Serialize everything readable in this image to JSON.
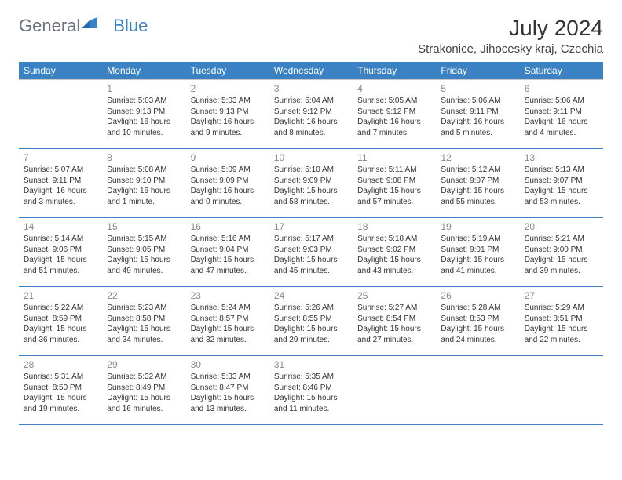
{
  "logo": {
    "text1": "General",
    "text2": "Blue"
  },
  "title": "July 2024",
  "location": "Strakonice, Jihocesky kraj, Czechia",
  "weekdays": [
    "Sunday",
    "Monday",
    "Tuesday",
    "Wednesday",
    "Thursday",
    "Friday",
    "Saturday"
  ],
  "colors": {
    "header_bg": "#3b82c4",
    "header_text": "#ffffff",
    "daynum": "#888888",
    "body_text": "#333333",
    "border": "#3b82c4",
    "row_top": "#c8c8c8"
  },
  "weeks": [
    [
      null,
      {
        "n": "1",
        "sr": "Sunrise: 5:03 AM",
        "ss": "Sunset: 9:13 PM",
        "d1": "Daylight: 16 hours",
        "d2": "and 10 minutes."
      },
      {
        "n": "2",
        "sr": "Sunrise: 5:03 AM",
        "ss": "Sunset: 9:13 PM",
        "d1": "Daylight: 16 hours",
        "d2": "and 9 minutes."
      },
      {
        "n": "3",
        "sr": "Sunrise: 5:04 AM",
        "ss": "Sunset: 9:12 PM",
        "d1": "Daylight: 16 hours",
        "d2": "and 8 minutes."
      },
      {
        "n": "4",
        "sr": "Sunrise: 5:05 AM",
        "ss": "Sunset: 9:12 PM",
        "d1": "Daylight: 16 hours",
        "d2": "and 7 minutes."
      },
      {
        "n": "5",
        "sr": "Sunrise: 5:06 AM",
        "ss": "Sunset: 9:11 PM",
        "d1": "Daylight: 16 hours",
        "d2": "and 5 minutes."
      },
      {
        "n": "6",
        "sr": "Sunrise: 5:06 AM",
        "ss": "Sunset: 9:11 PM",
        "d1": "Daylight: 16 hours",
        "d2": "and 4 minutes."
      }
    ],
    [
      {
        "n": "7",
        "sr": "Sunrise: 5:07 AM",
        "ss": "Sunset: 9:11 PM",
        "d1": "Daylight: 16 hours",
        "d2": "and 3 minutes."
      },
      {
        "n": "8",
        "sr": "Sunrise: 5:08 AM",
        "ss": "Sunset: 9:10 PM",
        "d1": "Daylight: 16 hours",
        "d2": "and 1 minute."
      },
      {
        "n": "9",
        "sr": "Sunrise: 5:09 AM",
        "ss": "Sunset: 9:09 PM",
        "d1": "Daylight: 16 hours",
        "d2": "and 0 minutes."
      },
      {
        "n": "10",
        "sr": "Sunrise: 5:10 AM",
        "ss": "Sunset: 9:09 PM",
        "d1": "Daylight: 15 hours",
        "d2": "and 58 minutes."
      },
      {
        "n": "11",
        "sr": "Sunrise: 5:11 AM",
        "ss": "Sunset: 9:08 PM",
        "d1": "Daylight: 15 hours",
        "d2": "and 57 minutes."
      },
      {
        "n": "12",
        "sr": "Sunrise: 5:12 AM",
        "ss": "Sunset: 9:07 PM",
        "d1": "Daylight: 15 hours",
        "d2": "and 55 minutes."
      },
      {
        "n": "13",
        "sr": "Sunrise: 5:13 AM",
        "ss": "Sunset: 9:07 PM",
        "d1": "Daylight: 15 hours",
        "d2": "and 53 minutes."
      }
    ],
    [
      {
        "n": "14",
        "sr": "Sunrise: 5:14 AM",
        "ss": "Sunset: 9:06 PM",
        "d1": "Daylight: 15 hours",
        "d2": "and 51 minutes."
      },
      {
        "n": "15",
        "sr": "Sunrise: 5:15 AM",
        "ss": "Sunset: 9:05 PM",
        "d1": "Daylight: 15 hours",
        "d2": "and 49 minutes."
      },
      {
        "n": "16",
        "sr": "Sunrise: 5:16 AM",
        "ss": "Sunset: 9:04 PM",
        "d1": "Daylight: 15 hours",
        "d2": "and 47 minutes."
      },
      {
        "n": "17",
        "sr": "Sunrise: 5:17 AM",
        "ss": "Sunset: 9:03 PM",
        "d1": "Daylight: 15 hours",
        "d2": "and 45 minutes."
      },
      {
        "n": "18",
        "sr": "Sunrise: 5:18 AM",
        "ss": "Sunset: 9:02 PM",
        "d1": "Daylight: 15 hours",
        "d2": "and 43 minutes."
      },
      {
        "n": "19",
        "sr": "Sunrise: 5:19 AM",
        "ss": "Sunset: 9:01 PM",
        "d1": "Daylight: 15 hours",
        "d2": "and 41 minutes."
      },
      {
        "n": "20",
        "sr": "Sunrise: 5:21 AM",
        "ss": "Sunset: 9:00 PM",
        "d1": "Daylight: 15 hours",
        "d2": "and 39 minutes."
      }
    ],
    [
      {
        "n": "21",
        "sr": "Sunrise: 5:22 AM",
        "ss": "Sunset: 8:59 PM",
        "d1": "Daylight: 15 hours",
        "d2": "and 36 minutes."
      },
      {
        "n": "22",
        "sr": "Sunrise: 5:23 AM",
        "ss": "Sunset: 8:58 PM",
        "d1": "Daylight: 15 hours",
        "d2": "and 34 minutes."
      },
      {
        "n": "23",
        "sr": "Sunrise: 5:24 AM",
        "ss": "Sunset: 8:57 PM",
        "d1": "Daylight: 15 hours",
        "d2": "and 32 minutes."
      },
      {
        "n": "24",
        "sr": "Sunrise: 5:26 AM",
        "ss": "Sunset: 8:55 PM",
        "d1": "Daylight: 15 hours",
        "d2": "and 29 minutes."
      },
      {
        "n": "25",
        "sr": "Sunrise: 5:27 AM",
        "ss": "Sunset: 8:54 PM",
        "d1": "Daylight: 15 hours",
        "d2": "and 27 minutes."
      },
      {
        "n": "26",
        "sr": "Sunrise: 5:28 AM",
        "ss": "Sunset: 8:53 PM",
        "d1": "Daylight: 15 hours",
        "d2": "and 24 minutes."
      },
      {
        "n": "27",
        "sr": "Sunrise: 5:29 AM",
        "ss": "Sunset: 8:51 PM",
        "d1": "Daylight: 15 hours",
        "d2": "and 22 minutes."
      }
    ],
    [
      {
        "n": "28",
        "sr": "Sunrise: 5:31 AM",
        "ss": "Sunset: 8:50 PM",
        "d1": "Daylight: 15 hours",
        "d2": "and 19 minutes."
      },
      {
        "n": "29",
        "sr": "Sunrise: 5:32 AM",
        "ss": "Sunset: 8:49 PM",
        "d1": "Daylight: 15 hours",
        "d2": "and 16 minutes."
      },
      {
        "n": "30",
        "sr": "Sunrise: 5:33 AM",
        "ss": "Sunset: 8:47 PM",
        "d1": "Daylight: 15 hours",
        "d2": "and 13 minutes."
      },
      {
        "n": "31",
        "sr": "Sunrise: 5:35 AM",
        "ss": "Sunset: 8:46 PM",
        "d1": "Daylight: 15 hours",
        "d2": "and 11 minutes."
      },
      null,
      null,
      null
    ]
  ]
}
